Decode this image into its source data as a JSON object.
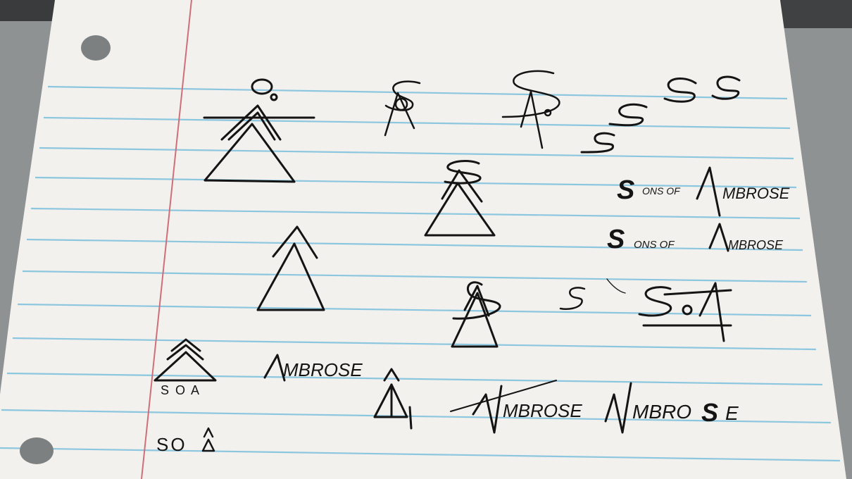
{
  "sketches": {
    "wordmark_1": {
      "cap_s": "S",
      "mid": "ONS OF",
      "cap_a": "A",
      "rest": "MBROSE"
    },
    "wordmark_2": {
      "cap_s": "S",
      "mid": "ONS OF",
      "cap_a": "A",
      "rest": "MBROSE"
    },
    "ambrose_left": "MBROSE",
    "ambrose_mid": "MBROSE",
    "ambrose_right": "MBRO",
    "ambrose_right_s": "S",
    "ambrose_right_e": "E",
    "soa_label": "S O A",
    "so_small": "SO",
    "s_letters": [
      "S",
      "S",
      "S",
      "S",
      "S",
      "S"
    ]
  },
  "colors": {
    "ink": "#141414",
    "paper": "#f3f2ee",
    "rule_line": "#8ac8e0",
    "margin_line": "#d0707a",
    "background": "#8e9192"
  }
}
